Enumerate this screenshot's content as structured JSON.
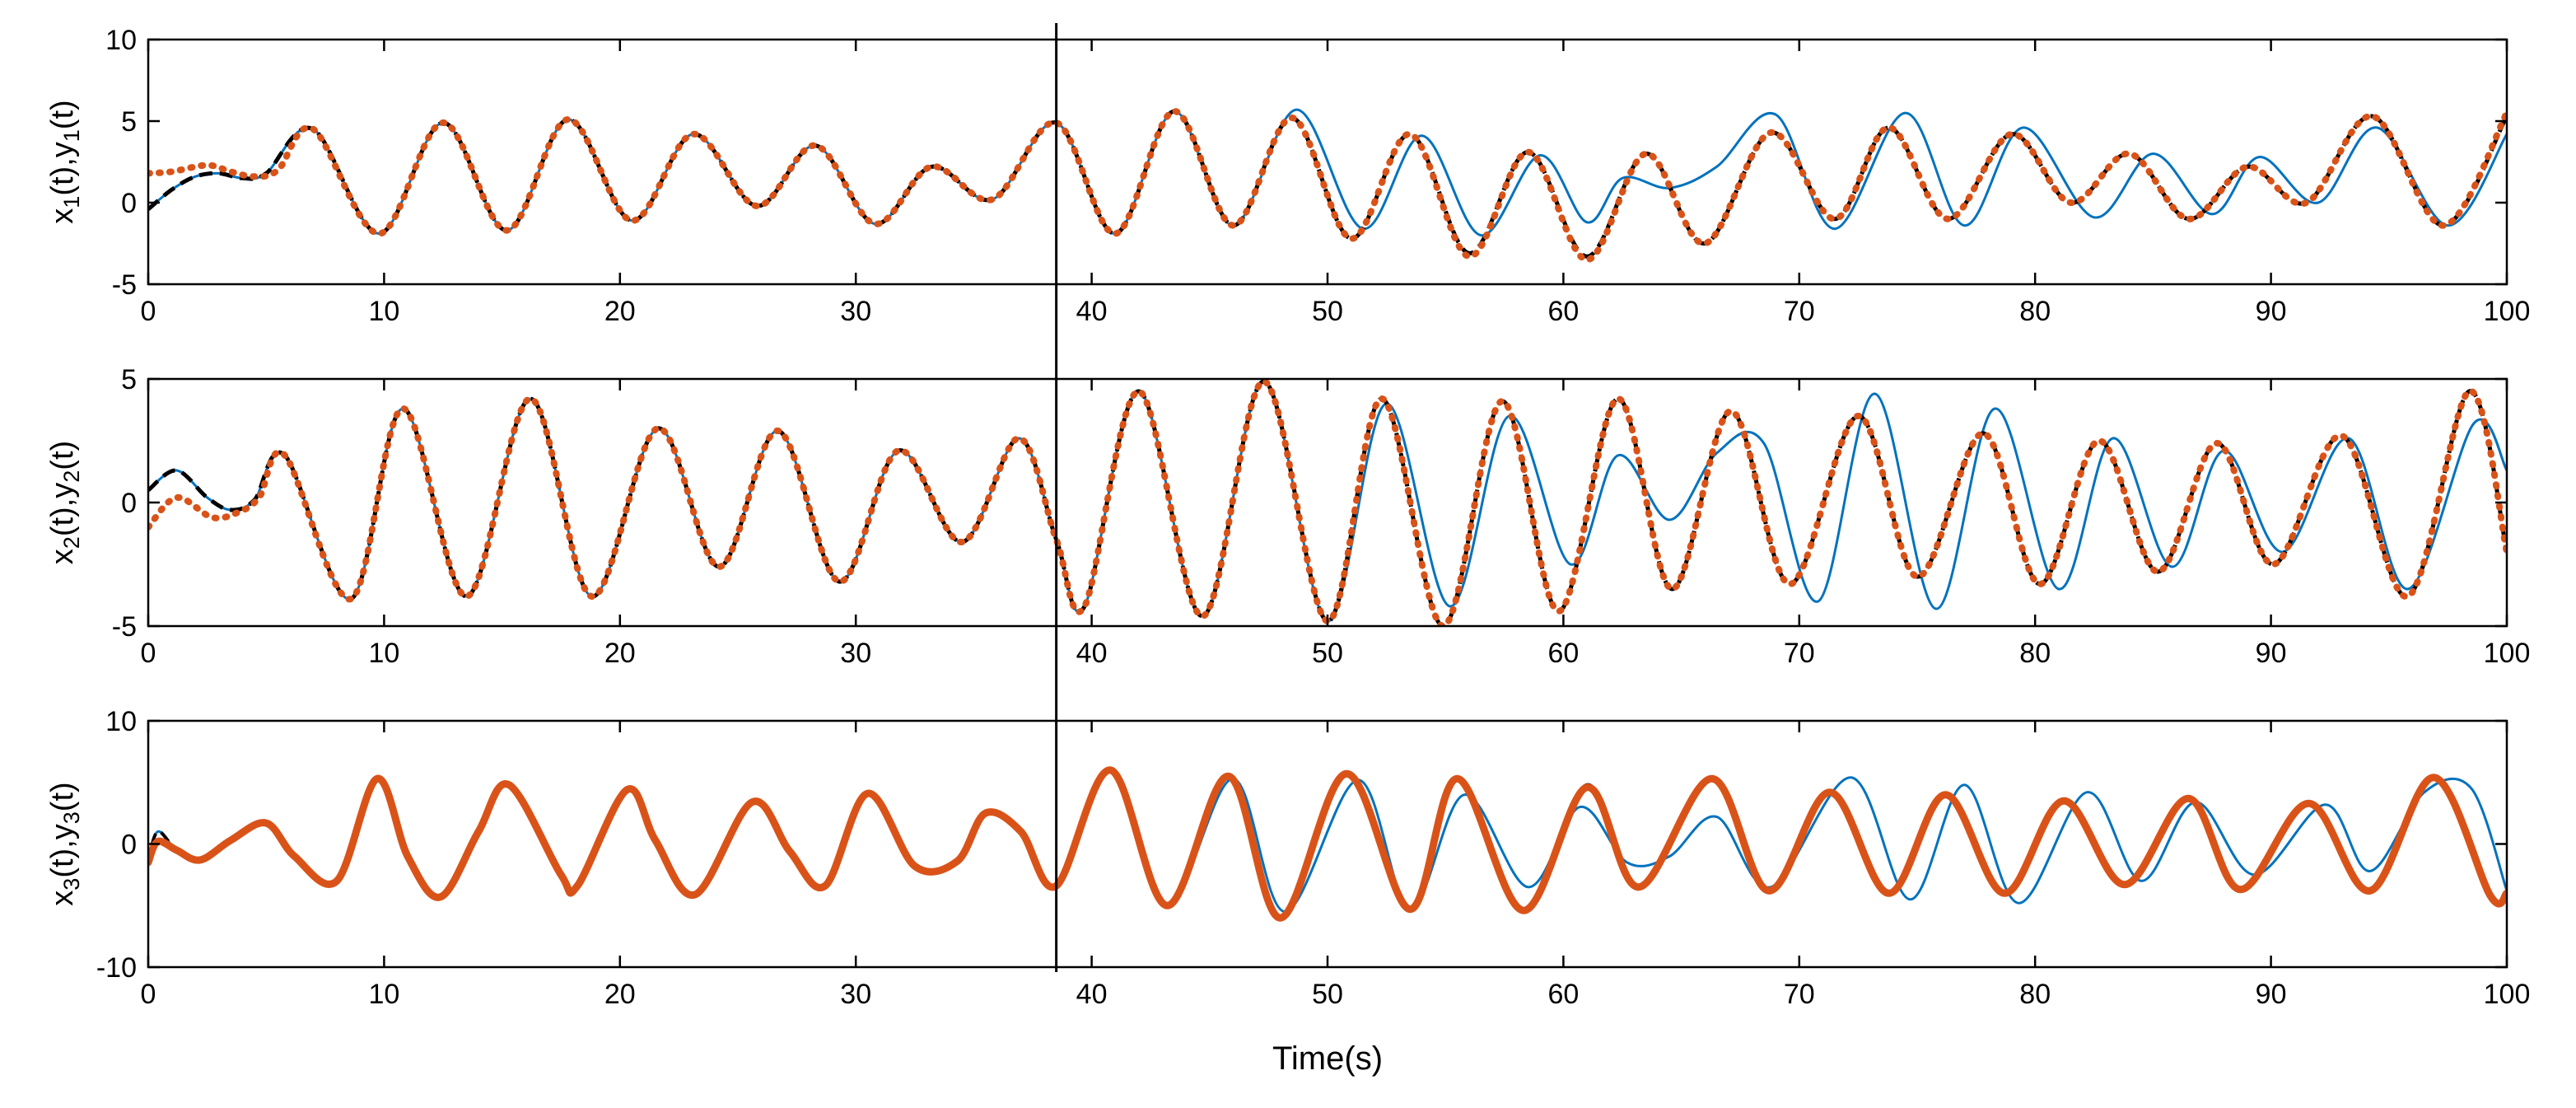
{
  "figure": {
    "xlabel": "Time(s)",
    "switch_time": 38.5
  },
  "chart_data": [
    {
      "type": "line",
      "title": "",
      "ylabel": "x_1(t),y_1(t)",
      "xlim": [
        0,
        100
      ],
      "ylim": [
        -5,
        10
      ],
      "xticks": [
        0,
        10,
        20,
        30,
        40,
        50,
        60,
        70,
        80,
        90,
        100
      ],
      "yticks": [
        -5,
        0,
        5,
        10
      ],
      "grid": false,
      "series": [
        {
          "name": "x1 (blue)",
          "color": "#0072BD",
          "x": [
            0,
            1,
            2,
            3,
            4,
            5,
            7,
            9.8,
            12.5,
            15.2,
            17.8,
            20.5,
            23.1,
            25.8,
            28.3,
            30.8,
            33.2,
            35.8,
            38.5,
            41,
            43.5,
            46,
            48.7,
            51.5,
            54,
            56.5,
            59,
            61,
            62.5,
            64.5,
            66.5,
            69,
            71.5,
            74.5,
            77,
            79.5,
            82.5,
            85,
            87.5,
            89.5,
            92,
            94.5,
            97.5,
            100
          ],
          "y": [
            -0.4,
            0.8,
            1.6,
            1.8,
            1.5,
            1.8,
            4.5,
            -1.9,
            4.9,
            -1.7,
            5.1,
            -1.1,
            4.2,
            -0.2,
            3.5,
            -1.3,
            2.2,
            0.2,
            4.9,
            -1.9,
            5.6,
            -1.4,
            5.7,
            -1.6,
            4.1,
            -2.0,
            2.9,
            -1.2,
            1.5,
            0.9,
            2.2,
            5.4,
            -1.6,
            5.5,
            -1.4,
            4.6,
            -0.9,
            3.0,
            -0.7,
            2.8,
            0.0,
            4.6,
            -1.4,
            4.2
          ]
        },
        {
          "name": "y1 (black dashed)",
          "color": "#000000",
          "x": [
            0,
            1,
            2,
            3,
            4,
            5,
            7,
            9.8,
            12.5,
            15.2,
            17.8,
            20.5,
            23.1,
            25.8,
            28.3,
            30.8,
            33.2,
            35.8,
            38.5,
            41,
            43.5,
            46,
            48.5,
            51,
            53.5,
            56,
            58.5,
            61,
            63.5,
            66,
            68.8,
            71.5,
            73.8,
            76.3,
            79,
            81.5,
            84,
            86.5,
            89,
            91.5,
            94.3,
            97.3,
            100
          ],
          "y": [
            -0.4,
            0.8,
            1.6,
            1.8,
            1.5,
            1.8,
            4.5,
            -1.9,
            4.9,
            -1.7,
            5.1,
            -1.1,
            4.2,
            -0.2,
            3.5,
            -1.3,
            2.2,
            0.2,
            4.9,
            -1.9,
            5.6,
            -1.4,
            5.2,
            -2.2,
            4.2,
            -3.1,
            3.1,
            -3.3,
            3.0,
            -2.5,
            4.3,
            -1.0,
            4.6,
            -1.0,
            4.2,
            0.0,
            3.0,
            -1.0,
            2.2,
            0.0,
            5.3,
            -1.4,
            5.3
          ]
        },
        {
          "name": "y1 (orange dotted)",
          "color": "#D95319",
          "x": [
            0,
            1,
            2.5,
            3.5,
            4.5,
            5.5,
            7,
            9.8,
            12.5,
            15.2,
            17.8,
            20.5,
            23.1,
            25.8,
            28.3,
            30.8,
            33.2,
            35.8,
            38.5,
            41,
            43.5,
            46,
            48.5,
            51,
            53.5,
            56,
            58.5,
            61,
            63.5,
            66,
            68.8,
            71.5,
            73.8,
            76.3,
            79,
            81.5,
            84,
            86.5,
            89,
            91.5,
            94.3,
            97.3,
            100
          ],
          "y": [
            1.8,
            1.9,
            2.3,
            1.9,
            1.6,
            2.0,
            4.5,
            -1.9,
            4.9,
            -1.7,
            5.1,
            -1.1,
            4.2,
            -0.2,
            3.5,
            -1.3,
            2.2,
            0.2,
            4.9,
            -1.9,
            5.6,
            -1.4,
            5.2,
            -2.2,
            4.2,
            -3.3,
            3.1,
            -3.5,
            3.0,
            -2.5,
            4.3,
            -1.0,
            4.6,
            -1.0,
            4.2,
            0.0,
            3.0,
            -1.0,
            2.2,
            0.0,
            5.3,
            -1.4,
            5.5
          ]
        }
      ]
    },
    {
      "type": "line",
      "title": "",
      "ylabel": "x_2(t),y_2(t)",
      "xlim": [
        0,
        100
      ],
      "ylim": [
        -5,
        5
      ],
      "xticks": [
        0,
        10,
        20,
        30,
        40,
        50,
        60,
        70,
        80,
        90,
        100
      ],
      "yticks": [
        -5,
        0,
        5
      ],
      "grid": false,
      "series": [
        {
          "name": "x2 (blue)",
          "color": "#0072BD",
          "x": [
            0,
            1.2,
            2.5,
            3.5,
            4.5,
            5.8,
            8.6,
            10.8,
            13.5,
            16.2,
            18.8,
            21.6,
            24.2,
            26.7,
            29.3,
            31.8,
            34.5,
            36.9,
            38.5,
            39.7,
            42,
            44.7,
            47.3,
            50,
            52.5,
            55.2,
            57.7,
            60.3,
            62.3,
            64.5,
            66.5,
            68.5,
            70.8,
            73.2,
            75.8,
            78.3,
            81,
            83.3,
            85.8,
            88,
            90.5,
            93.3,
            95.8,
            98.6,
            100
          ],
          "y": [
            0.5,
            1.3,
            0.2,
            -0.3,
            0.1,
            1.9,
            -3.9,
            3.8,
            -3.8,
            4.2,
            -3.8,
            3.0,
            -2.6,
            2.9,
            -3.2,
            2.1,
            -1.6,
            2.6,
            -1.5,
            -4.2,
            4.5,
            -4.6,
            4.9,
            -4.8,
            4.0,
            -4.2,
            3.5,
            -2.5,
            1.9,
            -0.7,
            2.0,
            2.4,
            -4.0,
            4.4,
            -4.3,
            3.8,
            -3.5,
            2.6,
            -2.6,
            2.1,
            -2.0,
            2.6,
            -3.5,
            3.2,
            1.3
          ]
        },
        {
          "name": "y2 (black dashed)",
          "color": "#000000",
          "x": [
            0,
            1.2,
            2.5,
            3.5,
            4.5,
            5.8,
            8.6,
            10.8,
            13.5,
            16.2,
            18.8,
            21.6,
            24.2,
            26.7,
            29.3,
            31.8,
            34.5,
            36.9,
            38.5,
            39.7,
            42,
            44.7,
            47.3,
            50,
            52.3,
            54.9,
            57.4,
            59.8,
            62.3,
            64.6,
            67.1,
            69.6,
            72.5,
            75,
            77.8,
            80.2,
            82.7,
            85.2,
            87.7,
            90.1,
            93,
            95.8,
            98.4,
            100
          ],
          "y": [
            0.5,
            1.3,
            0.2,
            -0.3,
            0.1,
            1.9,
            -3.9,
            3.8,
            -3.8,
            4.2,
            -3.8,
            3.0,
            -2.6,
            2.9,
            -3.2,
            2.1,
            -1.6,
            2.6,
            -1.5,
            -4.2,
            4.5,
            -4.6,
            4.9,
            -4.8,
            4.2,
            -5.0,
            4.1,
            -4.4,
            4.2,
            -3.5,
            3.7,
            -3.3,
            3.5,
            -3.0,
            2.8,
            -3.3,
            2.5,
            -2.8,
            2.4,
            -2.5,
            2.7,
            -3.8,
            4.5,
            -2.0
          ]
        },
        {
          "name": "y2 (orange dotted)",
          "color": "#D95319",
          "x": [
            0,
            1.2,
            2.7,
            3.8,
            4.7,
            5.8,
            8.6,
            10.8,
            13.5,
            16.2,
            18.8,
            21.6,
            24.2,
            26.7,
            29.3,
            31.8,
            34.5,
            36.9,
            38.5,
            39.7,
            42,
            44.7,
            47.3,
            50,
            52.3,
            54.9,
            57.4,
            59.8,
            62.3,
            64.6,
            67.1,
            69.6,
            72.5,
            75,
            77.8,
            80.2,
            82.7,
            85.2,
            87.7,
            90.1,
            93,
            95.8,
            98.4,
            100
          ],
          "y": [
            -1.0,
            0.2,
            -0.6,
            -0.4,
            0.2,
            1.9,
            -3.9,
            3.8,
            -3.8,
            4.2,
            -3.8,
            3.0,
            -2.6,
            2.9,
            -3.2,
            2.1,
            -1.6,
            2.6,
            -1.5,
            -4.2,
            4.5,
            -4.6,
            4.9,
            -4.8,
            4.2,
            -5.0,
            4.1,
            -4.4,
            4.2,
            -3.5,
            3.7,
            -3.3,
            3.5,
            -3.0,
            2.8,
            -3.3,
            2.5,
            -2.8,
            2.4,
            -2.5,
            2.7,
            -3.8,
            4.5,
            -2.0
          ]
        }
      ]
    },
    {
      "type": "line",
      "title": "",
      "ylabel": "x_3(t),y_3(t)",
      "xlim": [
        0,
        100
      ],
      "ylim": [
        -10,
        10
      ],
      "xticks": [
        0,
        10,
        20,
        30,
        40,
        50,
        60,
        70,
        80,
        90,
        100
      ],
      "yticks": [
        -10,
        0,
        10
      ],
      "grid": false,
      "series": [
        {
          "name": "x3 (blue)",
          "color": "#0072BD",
          "x": [
            0,
            0.4,
            1.2,
            2.2,
            3.5,
            5,
            6.2,
            8,
            9.7,
            11,
            12.4,
            14,
            15.3,
            17.5,
            18.2,
            20.3,
            21.5,
            23.2,
            25.6,
            27.2,
            28.7,
            30.5,
            32.5,
            34.3,
            35.5,
            37,
            38.5,
            40.8,
            43.2,
            46,
            48.2,
            51.3,
            53.5,
            55.8,
            58.5,
            60.7,
            62.7,
            64.5,
            66.5,
            68.8,
            72.2,
            74.7,
            77,
            79.3,
            82.2,
            84.5,
            86.8,
            89.3,
            92.3,
            94.2,
            96.5,
            98.5,
            100
          ],
          "y": [
            -1.5,
            1.0,
            -0.5,
            -1.3,
            0.3,
            1.7,
            -1.0,
            -3.0,
            5.3,
            -1.0,
            -4.3,
            1.0,
            4.8,
            -2.5,
            -3.4,
            4.4,
            0.3,
            -4.1,
            3.4,
            -0.6,
            -3.4,
            4.1,
            -1.8,
            -1.4,
            2.5,
            1.0,
            -3.4,
            6.0,
            -5.0,
            5.3,
            -5.5,
            5.2,
            -5.3,
            4.0,
            -3.5,
            3.0,
            -1.5,
            -1.0,
            2.2,
            -3.5,
            5.4,
            -4.5,
            4.8,
            -4.8,
            4.2,
            -3.0,
            3.4,
            -2.5,
            3.2,
            -2.2,
            4.2,
            4.5,
            -3.8
          ]
        },
        {
          "name": "y3 (black dashed)",
          "color": "#000000",
          "x": [
            0,
            0.4,
            1.2,
            2.2,
            3.5,
            5,
            6.2,
            8,
            9.7,
            11,
            12.4,
            14,
            15.3,
            17.5,
            18.2,
            20.3,
            21.5,
            23.2,
            25.6,
            27.2,
            28.7,
            30.5,
            32.5,
            34.3,
            35.5,
            37,
            38.5,
            40.8,
            43.2,
            45.8,
            48,
            50.8,
            53.5,
            55.5,
            58.3,
            61,
            63.2,
            66.3,
            68.7,
            71.3,
            73.8,
            76.2,
            78.7,
            81.2,
            83.8,
            86.5,
            88.7,
            91.6,
            94.2,
            96.9,
            99.3,
            100
          ],
          "y": [
            -1.5,
            1.0,
            -0.5,
            -1.3,
            0.3,
            1.7,
            -1.0,
            -3.0,
            5.3,
            -1.0,
            -4.3,
            1.0,
            4.8,
            -2.5,
            -3.4,
            4.4,
            0.3,
            -4.1,
            3.4,
            -0.6,
            -3.4,
            4.1,
            -1.8,
            -1.4,
            2.5,
            1.0,
            -3.4,
            6.0,
            -5.0,
            5.5,
            -6.0,
            5.7,
            -5.3,
            5.3,
            -5.4,
            4.8,
            -3.5,
            5.3,
            -3.8,
            4.2,
            -4.0,
            4.0,
            -4.0,
            3.5,
            -3.3,
            3.7,
            -3.7,
            3.3,
            -3.8,
            5.4,
            -4.2,
            -4.0
          ]
        },
        {
          "name": "y3 (orange thick)",
          "color": "#D95319",
          "x": [
            0,
            0.4,
            1.2,
            2.2,
            3.5,
            5,
            6.2,
            8,
            9.7,
            11,
            12.4,
            14,
            15.3,
            17.5,
            18.2,
            20.3,
            21.5,
            23.2,
            25.6,
            27.2,
            28.7,
            30.5,
            32.5,
            34.3,
            35.5,
            37,
            38.5,
            40.8,
            43.2,
            45.8,
            48,
            50.8,
            53.5,
            55.5,
            58.3,
            61,
            63.2,
            66.3,
            68.7,
            71.3,
            73.8,
            76.2,
            78.7,
            81.2,
            83.8,
            86.5,
            88.7,
            91.6,
            94.2,
            96.9,
            99.3,
            100
          ],
          "y": [
            -1.5,
            0.2,
            -0.5,
            -1.3,
            0.3,
            1.7,
            -1.0,
            -3.0,
            5.3,
            -1.0,
            -4.3,
            1.0,
            4.8,
            -2.5,
            -3.4,
            4.4,
            0.3,
            -4.1,
            3.4,
            -0.6,
            -3.4,
            4.1,
            -1.8,
            -1.4,
            2.5,
            1.0,
            -3.4,
            6.0,
            -5.0,
            5.5,
            -6.0,
            5.7,
            -5.3,
            5.3,
            -5.4,
            4.6,
            -3.5,
            5.3,
            -3.8,
            4.2,
            -4.0,
            4.0,
            -4.0,
            3.5,
            -3.3,
            3.7,
            -3.7,
            3.3,
            -3.8,
            5.4,
            -4.2,
            -4.0
          ]
        }
      ]
    }
  ]
}
